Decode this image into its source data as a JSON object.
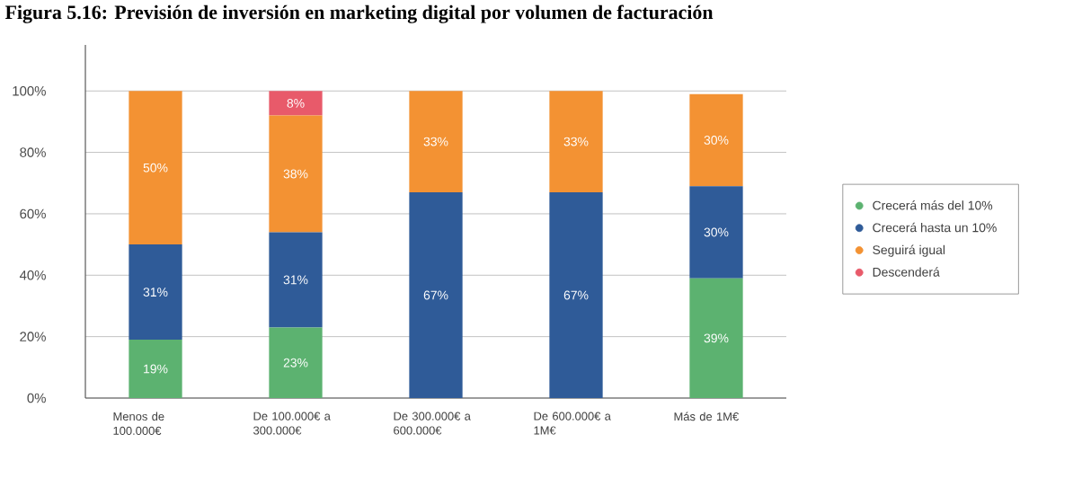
{
  "chart_data": {
    "type": "bar",
    "stacked": true,
    "title": "Figura 5.16: Previsión de inversión en marketing digital por volumen de facturación",
    "categories": [
      "Menos de 100.000€",
      "De 100.000€ a 300.000€",
      "De 300.000€ a 600.000€",
      "De 600.000€ a 1M€",
      "Más de 1M€"
    ],
    "series": [
      {
        "name": "Crecerá más del 10%",
        "color": "#5cb270",
        "values": [
          19,
          23,
          null,
          null,
          39
        ],
        "value_labels": [
          "19%",
          "23%",
          null,
          null,
          "39%"
        ]
      },
      {
        "name": "Crecerá hasta un 10%",
        "color": "#2f5b98",
        "values": [
          31,
          31,
          67,
          67,
          30
        ],
        "value_labels": [
          "31%",
          "31%",
          "67%",
          "67%",
          "30%"
        ]
      },
      {
        "name": "Seguirá igual",
        "color": "#f39233",
        "values": [
          50,
          38,
          33,
          33,
          30
        ],
        "value_labels": [
          "50%",
          "38%",
          "33%",
          "33%",
          "30%"
        ]
      },
      {
        "name": "Descenderá",
        "color": "#e85a6a",
        "values": [
          null,
          8,
          null,
          null,
          null
        ],
        "value_labels": [
          null,
          "8%",
          null,
          null,
          null
        ]
      }
    ],
    "ylim": [
      0,
      115
    ],
    "yticks": [
      {
        "value": 0,
        "label": "0%"
      },
      {
        "value": 20,
        "label": "20%"
      },
      {
        "value": 40,
        "label": "40%"
      },
      {
        "value": 60,
        "label": "60%"
      },
      {
        "value": 80,
        "label": "80%"
      },
      {
        "value": 100,
        "label": "100%"
      }
    ],
    "grid": "y",
    "legend": "right"
  }
}
